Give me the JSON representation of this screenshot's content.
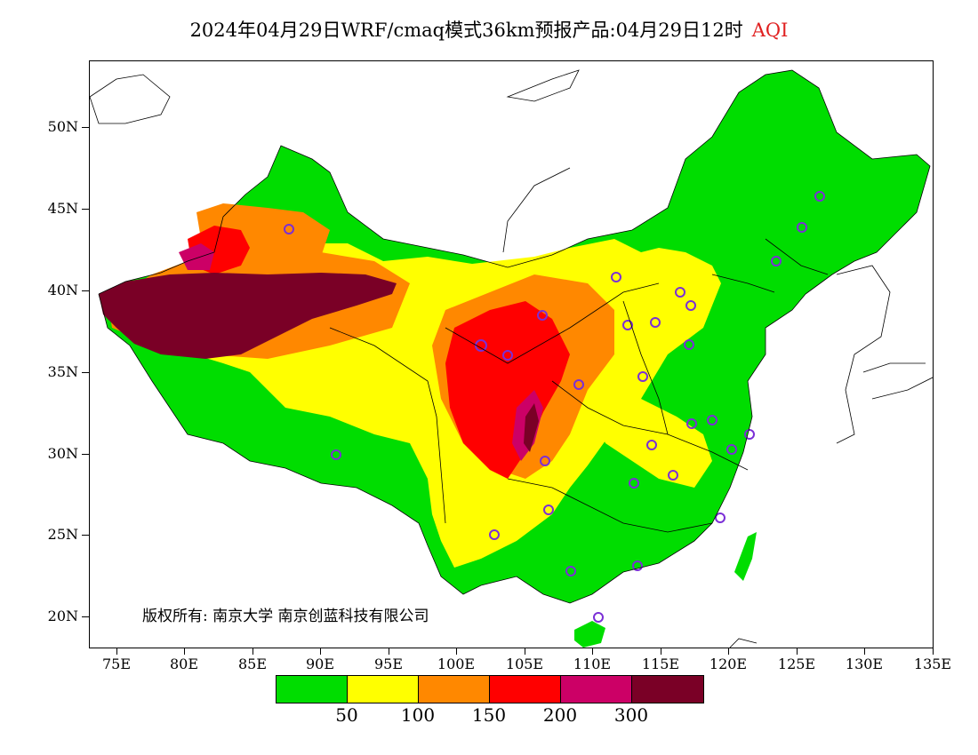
{
  "title": {
    "main": "2024年04月29日WRF/cmaq模式36km预报产品:04月29日12时",
    "variable": "AQI"
  },
  "map": {
    "lat_ticks": [
      "50N",
      "45N",
      "40N",
      "35N",
      "30N",
      "25N",
      "20N"
    ],
    "lon_ticks": [
      "75E",
      "80E",
      "85E",
      "90E",
      "95E",
      "100E",
      "105E",
      "110E",
      "115E",
      "120E",
      "125E",
      "130E",
      "135E"
    ],
    "copyright": "版权所有: 南京大学  南京创蓝科技有限公司"
  },
  "legend": {
    "colors": [
      "#00dd00",
      "#ffff00",
      "#ff8800",
      "#ff0000",
      "#cc0066",
      "#7a0026"
    ],
    "labels": [
      "50",
      "100",
      "150",
      "200",
      "300"
    ]
  }
}
